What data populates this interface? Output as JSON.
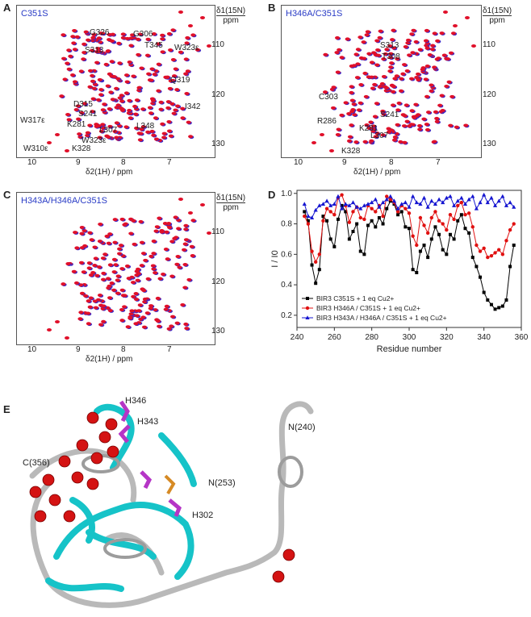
{
  "figure": {
    "panels": [
      {
        "letter": "A",
        "variant": "C351S",
        "axis": {
          "x_label": "δ2(1H) / ppm",
          "y_label": "δ1(15N)",
          "y_unit": "ppm",
          "x_ticks": [
            "10",
            "9",
            "8",
            "7"
          ],
          "y_ticks": [
            "110",
            "120",
            "130"
          ]
        },
        "peak_labels": [
          "G326",
          "G306",
          "T345",
          "S313",
          "W323ε",
          "Q319",
          "D315",
          "S241",
          "K281",
          "L307",
          "L348",
          "I342",
          "W317ε",
          "W323ε",
          "W310ε",
          "K328"
        ]
      },
      {
        "letter": "B",
        "variant": "H346A/C351S",
        "axis": {
          "x_label": "δ2(1H) / ppm",
          "y_label": "δ1(15N)",
          "y_unit": "ppm",
          "x_ticks": [
            "10",
            "9",
            "8",
            "7"
          ],
          "y_ticks": [
            "110",
            "120",
            "130"
          ]
        },
        "peak_labels": [
          "S313",
          "T308",
          "C303",
          "S241",
          "R286",
          "K281",
          "L307",
          "K328"
        ]
      },
      {
        "letter": "C",
        "variant": "H343A/H346A/C351S",
        "axis": {
          "x_label": "δ2(1H) / ppm",
          "y_label": "δ1(15N)",
          "y_unit": "ppm",
          "x_ticks": [
            "10",
            "9",
            "8",
            "7"
          ],
          "y_ticks": [
            "110",
            "120",
            "130"
          ]
        }
      }
    ],
    "panel_d": {
      "letter": "D"
    },
    "panel_e": {
      "letter": "E",
      "labels": [
        "H346",
        "H343",
        "C(356)",
        "N(240)",
        "N(253)",
        "H302"
      ]
    },
    "colors": {
      "peaks_a": "#e0102a",
      "peaks_b": "#3a28c8",
      "accent_text": "#2a3cc6",
      "helix": "#16c3c8",
      "coil": "#b8b8b8",
      "sphere": "#d41313",
      "his": "#b535c6",
      "cys": "#d68a25"
    }
  },
  "chart_data": {
    "type": "line",
    "xlabel": "Residue number",
    "ylabel": "I / I0",
    "xlim": [
      240,
      360
    ],
    "ylim": [
      0.12,
      1.02
    ],
    "x_ticks": [
      240,
      260,
      280,
      300,
      320,
      340,
      360
    ],
    "y_ticks": [
      0.2,
      0.4,
      0.6,
      0.8,
      1.0
    ],
    "legend_position": "bottom-left",
    "series": [
      {
        "name": "BIR3 C351S + 1 eq Cu2+",
        "color": "#000000",
        "marker": "square",
        "x": [
          244,
          246,
          248,
          250,
          252,
          254,
          256,
          258,
          260,
          262,
          264,
          266,
          268,
          270,
          272,
          274,
          276,
          278,
          280,
          282,
          284,
          286,
          288,
          290,
          292,
          294,
          296,
          298,
          300,
          302,
          304,
          306,
          308,
          310,
          312,
          314,
          316,
          318,
          320,
          322,
          324,
          326,
          328,
          330,
          332,
          334,
          336,
          338,
          340,
          342,
          344,
          346,
          348,
          350,
          352,
          354,
          356
        ],
        "y": [
          0.88,
          0.82,
          0.53,
          0.41,
          0.5,
          0.85,
          0.82,
          0.7,
          0.65,
          0.83,
          0.92,
          0.88,
          0.7,
          0.75,
          0.8,
          0.62,
          0.6,
          0.79,
          0.82,
          0.78,
          0.84,
          0.8,
          0.9,
          0.95,
          0.93,
          0.86,
          0.88,
          0.78,
          0.77,
          0.5,
          0.48,
          0.62,
          0.66,
          0.58,
          0.7,
          0.78,
          0.73,
          0.63,
          0.6,
          0.73,
          0.7,
          0.82,
          0.86,
          0.77,
          0.74,
          0.58,
          0.52,
          0.45,
          0.35,
          0.3,
          0.27,
          0.24,
          0.25,
          0.26,
          0.3,
          0.52,
          0.66
        ]
      },
      {
        "name": "BIR3 H346A / C351S + 1 eq Cu2+",
        "color": "#e01010",
        "marker": "circle",
        "x": [
          244,
          246,
          248,
          250,
          252,
          254,
          256,
          258,
          260,
          262,
          264,
          266,
          268,
          270,
          272,
          274,
          276,
          278,
          280,
          282,
          284,
          286,
          288,
          290,
          292,
          294,
          296,
          298,
          300,
          302,
          304,
          306,
          308,
          310,
          312,
          314,
          316,
          318,
          320,
          322,
          324,
          326,
          328,
          330,
          332,
          334,
          336,
          338,
          340,
          342,
          344,
          346,
          348,
          350,
          352,
          354,
          356
        ],
        "y": [
          0.85,
          0.8,
          0.62,
          0.55,
          0.6,
          0.82,
          0.9,
          0.88,
          0.86,
          0.97,
          0.99,
          0.92,
          0.81,
          0.88,
          0.91,
          0.84,
          0.83,
          0.92,
          0.9,
          0.88,
          0.92,
          0.85,
          0.98,
          0.96,
          0.94,
          0.88,
          0.92,
          0.9,
          0.87,
          0.72,
          0.66,
          0.84,
          0.79,
          0.74,
          0.84,
          0.88,
          0.82,
          0.8,
          0.76,
          0.86,
          0.83,
          0.92,
          0.94,
          0.86,
          0.87,
          0.78,
          0.66,
          0.62,
          0.64,
          0.58,
          0.59,
          0.61,
          0.63,
          0.6,
          0.69,
          0.76,
          0.8
        ]
      },
      {
        "name": "BIR3 H343A / H346A / C351S + 1 eq Cu2+",
        "color": "#1515d0",
        "marker": "triangle",
        "x": [
          244,
          246,
          248,
          250,
          252,
          254,
          256,
          258,
          260,
          262,
          264,
          266,
          268,
          270,
          272,
          274,
          276,
          278,
          280,
          282,
          284,
          286,
          288,
          290,
          292,
          294,
          296,
          298,
          300,
          302,
          304,
          306,
          308,
          310,
          312,
          314,
          316,
          318,
          320,
          322,
          324,
          326,
          328,
          330,
          332,
          334,
          336,
          338,
          340,
          342,
          344,
          346,
          348,
          350,
          352,
          354,
          356
        ],
        "y": [
          0.93,
          0.85,
          0.84,
          0.89,
          0.92,
          0.93,
          0.95,
          0.92,
          0.93,
          0.98,
          0.9,
          0.93,
          0.92,
          0.94,
          0.91,
          0.9,
          0.92,
          0.93,
          0.94,
          0.96,
          0.91,
          0.94,
          0.96,
          0.98,
          0.95,
          0.9,
          0.93,
          0.94,
          0.91,
          0.98,
          0.94,
          0.93,
          0.97,
          0.91,
          0.95,
          0.93,
          0.96,
          0.94,
          0.97,
          0.98,
          0.92,
          0.95,
          0.97,
          0.93,
          0.96,
          0.98,
          0.9,
          0.94,
          0.99,
          0.94,
          0.97,
          0.92,
          0.95,
          0.98,
          0.92,
          0.94,
          0.91
        ]
      }
    ]
  }
}
